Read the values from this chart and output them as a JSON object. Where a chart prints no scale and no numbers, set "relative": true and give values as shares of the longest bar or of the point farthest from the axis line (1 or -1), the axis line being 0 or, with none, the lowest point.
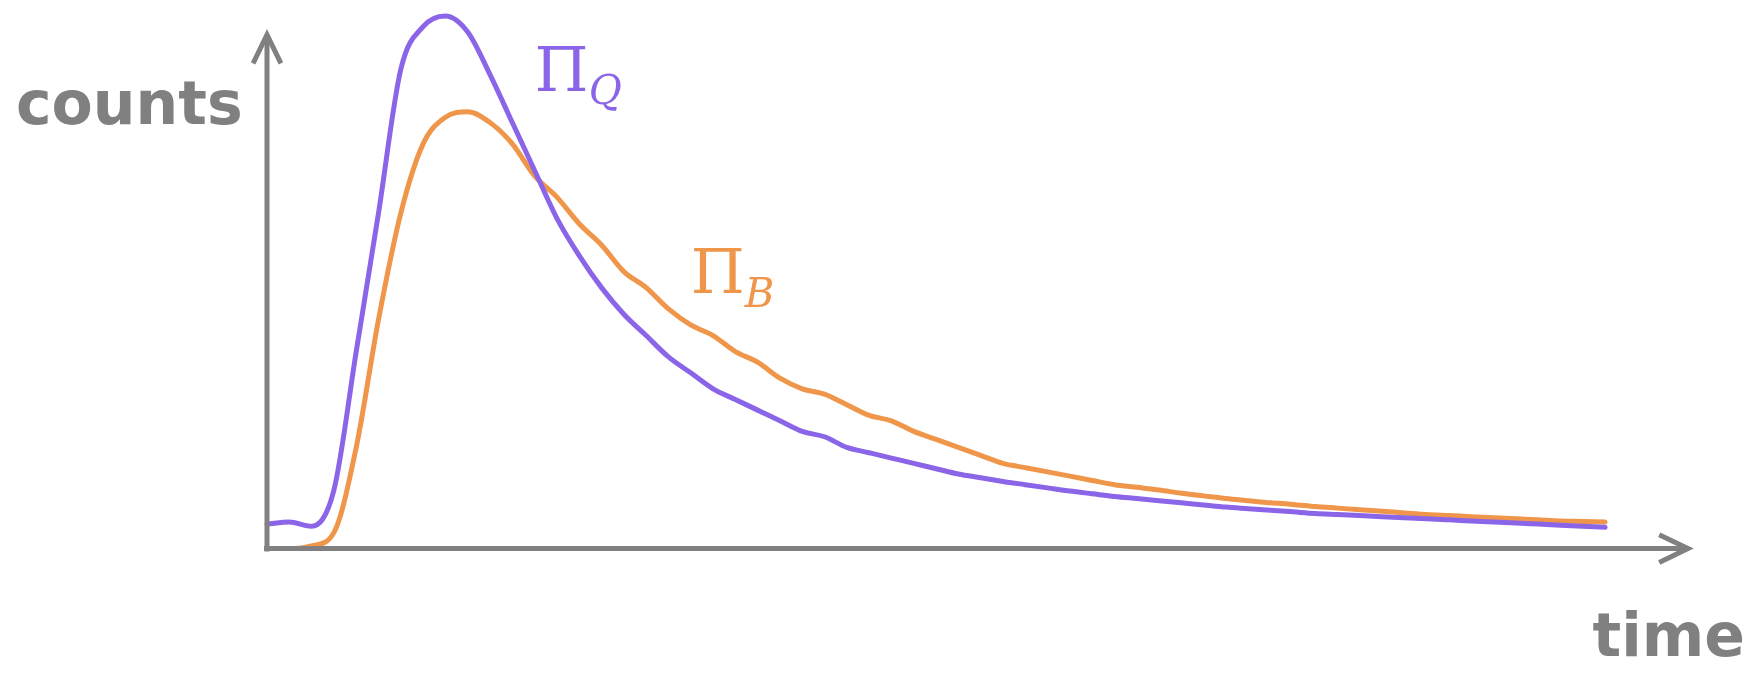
{
  "chart_data": {
    "type": "line",
    "relative": true,
    "xlabel": "time",
    "ylabel": "counts",
    "legend": false,
    "marker": "none",
    "categories": [
      null,
      null,
      null,
      null,
      null,
      null,
      null,
      null,
      null,
      null,
      null,
      null,
      null,
      null,
      null,
      null,
      null,
      null,
      null,
      null,
      null,
      null,
      null,
      null,
      null,
      null,
      null,
      null,
      null,
      null,
      null,
      null,
      null,
      null,
      null,
      null,
      null,
      null,
      null,
      null,
      null,
      null,
      null,
      null,
      null,
      null,
      null,
      null,
      null,
      null,
      null,
      null,
      null,
      null,
      null,
      null,
      null,
      null,
      null,
      null,
      null,
      null,
      null,
      null
    ],
    "series": [
      {
        "name": "Π$_{Q}$",
        "color": "#8b65e8",
        "values": [
          0.046,
          0.05,
          0.042,
          0.11,
          0.37,
          0.63,
          0.9,
          0.98,
          1.0,
          0.97,
          0.89,
          0.8,
          0.71,
          0.62,
          0.55,
          0.49,
          0.44,
          0.4,
          0.36,
          0.33,
          0.3,
          0.28,
          0.26,
          0.24,
          0.22,
          0.21,
          0.19,
          0.18,
          0.17,
          0.16,
          0.15,
          0.14,
          0.133,
          0.126,
          0.12,
          0.114,
          0.108,
          0.103,
          0.098,
          0.094,
          0.09,
          0.086,
          0.082,
          0.078,
          0.075,
          0.072,
          0.069,
          0.066,
          0.064,
          0.062,
          0.06,
          0.058,
          0.056,
          0.054,
          0.052,
          0.05,
          0.048,
          0.046,
          0.044,
          0.042,
          0.04,
          null,
          null,
          null
        ]
      },
      {
        "name": "Π$_{B}$",
        "color": "#f0964a",
        "values": [
          0,
          0,
          0.005,
          0.03,
          0.19,
          0.43,
          0.63,
          0.76,
          0.81,
          0.82,
          0.8,
          0.76,
          0.7,
          0.66,
          0.61,
          0.57,
          0.52,
          0.49,
          0.45,
          0.42,
          0.4,
          0.37,
          0.35,
          0.32,
          0.3,
          0.29,
          0.27,
          0.25,
          0.24,
          0.22,
          0.205,
          0.19,
          0.175,
          0.16,
          0.152,
          0.144,
          0.136,
          0.128,
          0.12,
          0.115,
          0.11,
          0.104,
          0.099,
          0.094,
          0.09,
          0.086,
          0.083,
          0.079,
          0.076,
          0.073,
          0.07,
          0.067,
          0.064,
          0.062,
          0.06,
          0.058,
          0.056,
          0.054,
          0.052,
          0.051,
          0.05,
          null,
          null,
          null
        ]
      }
    ]
  }
}
